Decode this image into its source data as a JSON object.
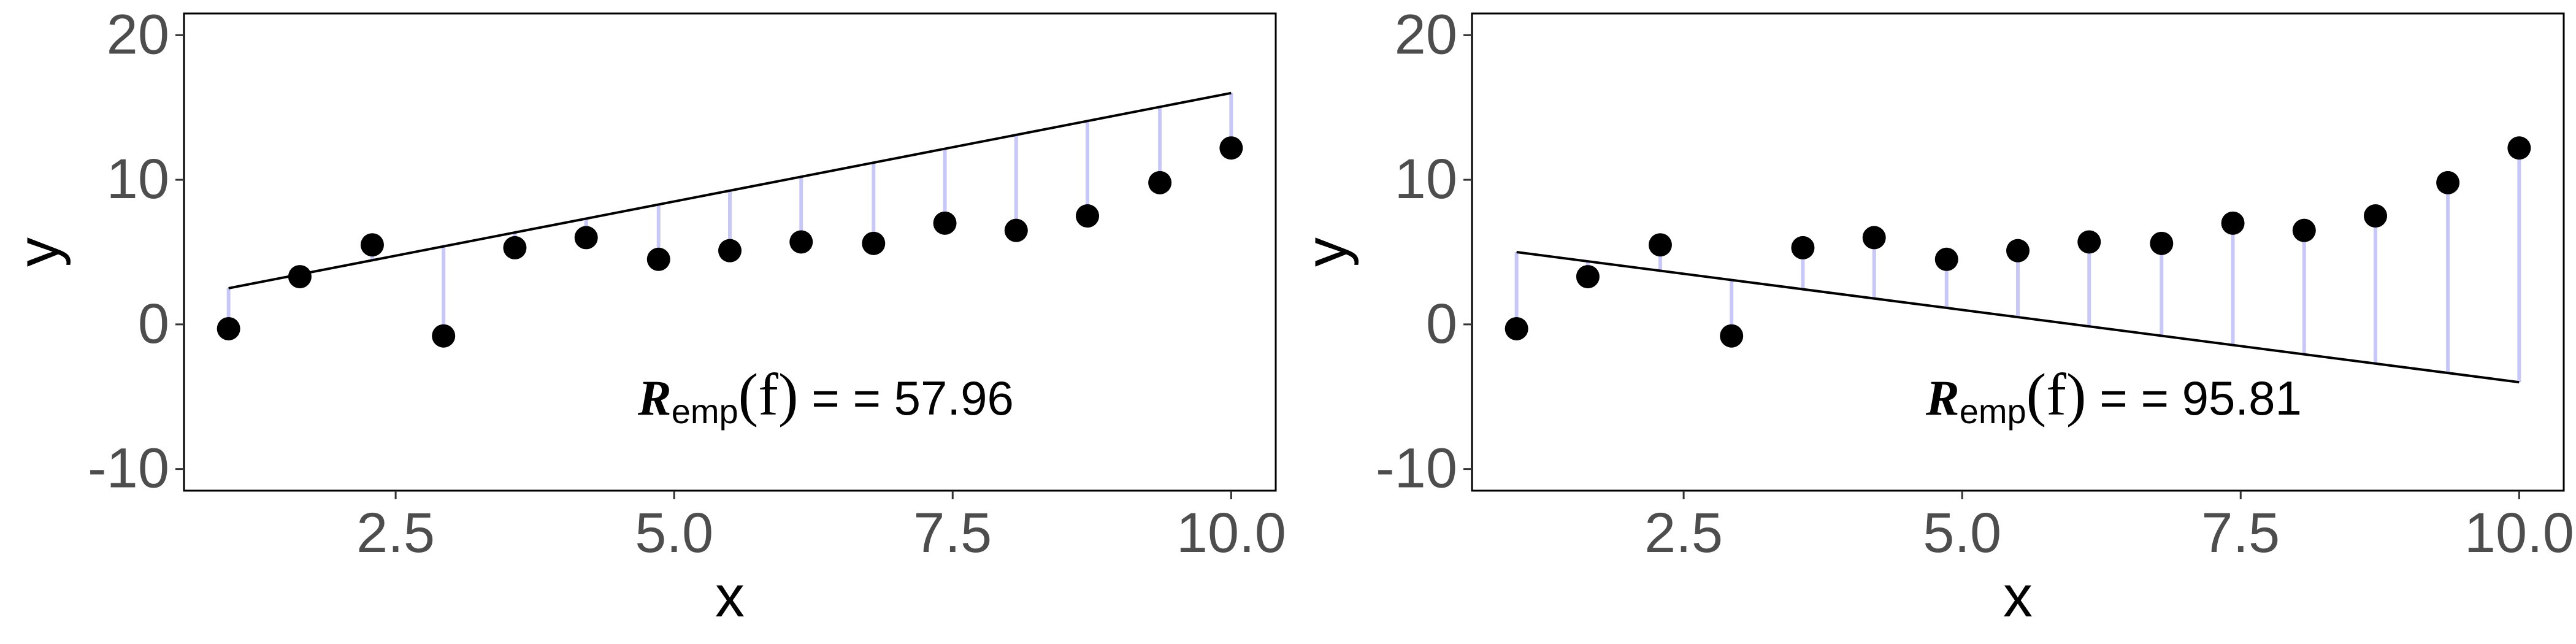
{
  "chart_data": [
    {
      "type": "scatter",
      "xlabel": "x",
      "ylabel": "y",
      "xlim": [
        0.6,
        10.4
      ],
      "ylim": [
        -11.5,
        21.5
      ],
      "xticks": [
        "2.5",
        "5.0",
        "7.5",
        "10.0"
      ],
      "yticks": [
        "-10",
        "0",
        "10",
        "20"
      ],
      "grid": false,
      "points": {
        "x": [
          1.0,
          1.64,
          2.29,
          2.93,
          3.57,
          4.21,
          4.86,
          5.5,
          6.14,
          6.79,
          7.43,
          8.07,
          8.71,
          9.36,
          10.0
        ],
        "y": [
          -0.3,
          3.3,
          5.5,
          -0.8,
          5.3,
          6.0,
          4.5,
          5.1,
          5.7,
          5.6,
          7.0,
          6.5,
          7.5,
          9.8,
          12.2
        ]
      },
      "line": {
        "x": [
          1.0,
          10.0
        ],
        "y": [
          2.5,
          16.0
        ]
      },
      "residual_color": "#c8c8f8",
      "annotation": {
        "label_main": "R",
        "label_sub": "emp",
        "label_arg": "(f)",
        "eq": "=",
        "value": "= 57.96"
      }
    },
    {
      "type": "scatter",
      "xlabel": "x",
      "ylabel": "y",
      "xlim": [
        0.6,
        10.4
      ],
      "ylim": [
        -11.5,
        21.5
      ],
      "xticks": [
        "2.5",
        "5.0",
        "7.5",
        "10.0"
      ],
      "yticks": [
        "-10",
        "0",
        "10",
        "20"
      ],
      "grid": false,
      "points": {
        "x": [
          1.0,
          1.64,
          2.29,
          2.93,
          3.57,
          4.21,
          4.86,
          5.5,
          6.14,
          6.79,
          7.43,
          8.07,
          8.71,
          9.36,
          10.0
        ],
        "y": [
          -0.3,
          3.3,
          5.5,
          -0.8,
          5.3,
          6.0,
          4.5,
          5.1,
          5.7,
          5.6,
          7.0,
          6.5,
          7.5,
          9.8,
          12.2
        ]
      },
      "line": {
        "x": [
          1.0,
          10.0
        ],
        "y": [
          5.0,
          -4.0
        ]
      },
      "residual_color": "#c8c8f8",
      "annotation": {
        "label_main": "R",
        "label_sub": "emp",
        "label_arg": "(f)",
        "eq": "=",
        "value": "= 95.81"
      }
    }
  ]
}
